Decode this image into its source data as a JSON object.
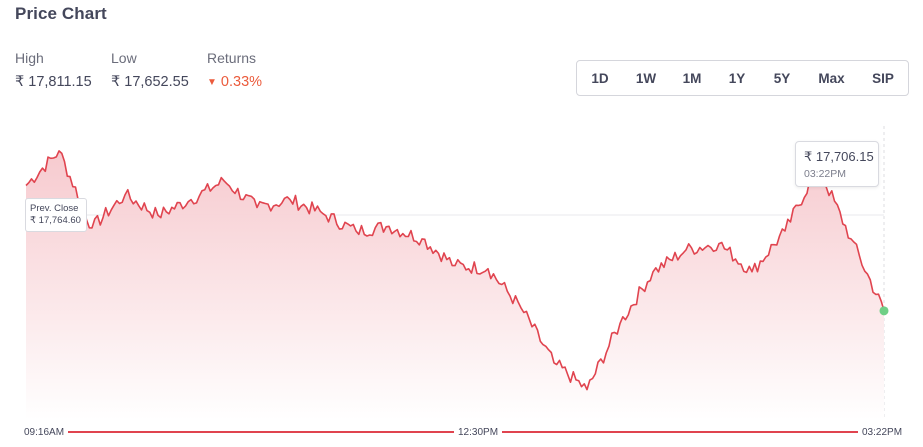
{
  "title": "Price Chart",
  "stats": {
    "high": {
      "label": "High",
      "value": "₹ 17,811.15"
    },
    "low": {
      "label": "Low",
      "value": "₹ 17,652.55"
    },
    "returns": {
      "label": "Returns",
      "value": "0.33%",
      "direction": "down"
    }
  },
  "tabs": [
    {
      "label": "1D",
      "active": true
    },
    {
      "label": "1W",
      "active": false
    },
    {
      "label": "1M",
      "active": false
    },
    {
      "label": "1Y",
      "active": false
    },
    {
      "label": "5Y",
      "active": false
    },
    {
      "label": "Max",
      "active": false
    },
    {
      "label": "SIP",
      "active": false
    }
  ],
  "tooltip": {
    "price": "₹ 17,706.15",
    "time": "03:22PM"
  },
  "prev_close": {
    "label": "Prev. Close",
    "value": "₹ 17,764.60"
  },
  "time_axis": {
    "start": "09:16AM",
    "mid": "12:30PM",
    "end": "03:22PM"
  },
  "colors": {
    "line": "#e0444f",
    "fill_top": "#f6c7cc",
    "fill_bottom": "#ffffff",
    "end_dot": "#6fcf86",
    "negative": "#eb5b3c",
    "active_tab_bg": "#121a2b"
  },
  "chart_data": {
    "type": "area",
    "x": [
      "09:16AM",
      "09:25AM",
      "09:35AM",
      "09:45AM",
      "10:00AM",
      "10:15AM",
      "10:30AM",
      "10:45AM",
      "11:00AM",
      "11:15AM",
      "11:30AM",
      "11:45AM",
      "12:00PM",
      "12:15PM",
      "12:30PM",
      "12:45PM",
      "01:00PM",
      "01:15PM",
      "01:30PM",
      "01:45PM",
      "02:00PM",
      "02:15PM",
      "02:30PM",
      "02:45PM",
      "03:00PM",
      "03:10PM",
      "03:22PM"
    ],
    "y": [
      17786,
      17808,
      17759,
      17780,
      17767,
      17777,
      17789,
      17772,
      17777,
      17768,
      17757,
      17760,
      17752,
      17735,
      17733,
      17708,
      17673,
      17656,
      17698,
      17731,
      17745,
      17749,
      17731,
      17757,
      17798,
      17752,
      17706.15
    ],
    "reference_line": {
      "label": "Prev. Close",
      "value": 17764.6
    },
    "ylim": [
      17652.55,
      17811.15
    ],
    "grid": false
  }
}
